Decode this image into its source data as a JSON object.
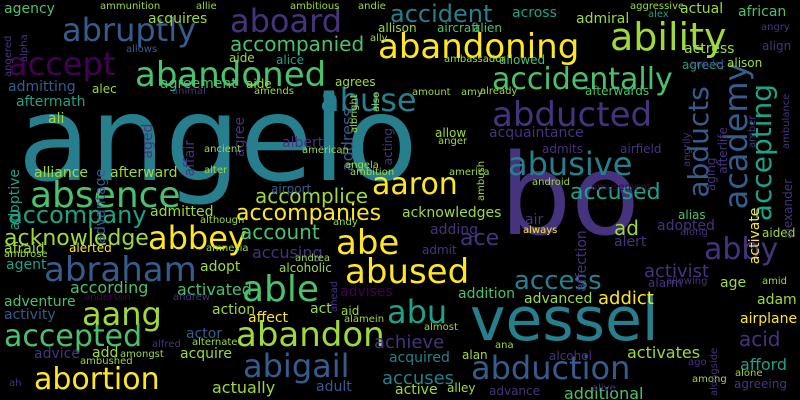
{
  "palette": {
    "background": "#000000",
    "c1": "#440154",
    "c2": "#46337e",
    "c3": "#365c8d",
    "c4": "#277f8e",
    "c5": "#1fa187",
    "c6": "#4ac16d",
    "c7": "#9fda3a",
    "c8": "#fde725"
  },
  "words": [
    {
      "text": "angelo",
      "color": "#277f8e"
    },
    {
      "text": "bo",
      "color": "#46337e"
    },
    {
      "text": "vessel",
      "color": "#277f8e"
    },
    {
      "text": "abandoning",
      "color": "#fde725"
    },
    {
      "text": "ability",
      "color": "#9fda3a"
    },
    {
      "text": "aboard",
      "color": "#46337e"
    },
    {
      "text": "abruptly",
      "color": "#365c8d"
    },
    {
      "text": "accident",
      "color": "#277f8e"
    },
    {
      "text": "accept",
      "color": "#440154"
    },
    {
      "text": "abandoned",
      "color": "#4ac16d"
    },
    {
      "text": "accompanied",
      "color": "#4ac16d"
    },
    {
      "text": "abuse",
      "color": "#277f8e"
    },
    {
      "text": "accidentally",
      "color": "#4ac16d"
    },
    {
      "text": "abducted",
      "color": "#46337e"
    },
    {
      "text": "abducts",
      "color": "#365c8d"
    },
    {
      "text": "academy",
      "color": "#365c8d"
    },
    {
      "text": "accepting",
      "color": "#1fa187"
    },
    {
      "text": "abusive",
      "color": "#277f8e"
    },
    {
      "text": "absence",
      "color": "#4ac16d"
    },
    {
      "text": "aaron",
      "color": "#fde725"
    },
    {
      "text": "accompany",
      "color": "#1fa187"
    },
    {
      "text": "accomplice",
      "color": "#9fda3a"
    },
    {
      "text": "acknowledge",
      "color": "#9fda3a"
    },
    {
      "text": "abbey",
      "color": "#fde725"
    },
    {
      "text": "accompanies",
      "color": "#fde725"
    },
    {
      "text": "account",
      "color": "#4ac16d"
    },
    {
      "text": "abe",
      "color": "#fde725"
    },
    {
      "text": "abraham",
      "color": "#365c8d"
    },
    {
      "text": "abused",
      "color": "#fde725"
    },
    {
      "text": "abby",
      "color": "#46337e"
    },
    {
      "text": "able",
      "color": "#4ac16d"
    },
    {
      "text": "access",
      "color": "#277f8e"
    },
    {
      "text": "aang",
      "color": "#9fda3a"
    },
    {
      "text": "abu",
      "color": "#1fa187"
    },
    {
      "text": "accepted",
      "color": "#4ac16d"
    },
    {
      "text": "abandon",
      "color": "#9fda3a"
    },
    {
      "text": "abigail",
      "color": "#365c8d"
    },
    {
      "text": "abduction",
      "color": "#365c8d"
    },
    {
      "text": "abortion",
      "color": "#fde725"
    },
    {
      "text": "ace",
      "color": "#46337e"
    },
    {
      "text": "accused",
      "color": "#1fa187"
    },
    {
      "text": "accusing",
      "color": "#46337e"
    },
    {
      "text": "according",
      "color": "#4ac16d"
    },
    {
      "text": "activated",
      "color": "#4ac16d"
    },
    {
      "text": "achieve",
      "color": "#46337e"
    },
    {
      "text": "accuses",
      "color": "#277f8e"
    },
    {
      "text": "acquired",
      "color": "#277f8e"
    },
    {
      "text": "actually",
      "color": "#9fda3a"
    },
    {
      "text": "active",
      "color": "#9fda3a"
    },
    {
      "text": "advance",
      "color": "#46337e"
    },
    {
      "text": "additional",
      "color": "#4ac16d"
    },
    {
      "text": "activates",
      "color": "#9fda3a"
    },
    {
      "text": "afford",
      "color": "#1fa187"
    },
    {
      "text": "acid",
      "color": "#46337e"
    },
    {
      "text": "adam",
      "color": "#9fda3a"
    },
    {
      "text": "airplane",
      "color": "#fde725"
    },
    {
      "text": "aided",
      "color": "#9fda3a"
    },
    {
      "text": "alias",
      "color": "#4ac16d"
    },
    {
      "text": "afterward",
      "color": "#9fda3a"
    },
    {
      "text": "acknowledges",
      "color": "#9fda3a"
    },
    {
      "text": "adding",
      "color": "#46337e"
    },
    {
      "text": "admitted",
      "color": "#9fda3a"
    },
    {
      "text": "adopt",
      "color": "#9fda3a"
    },
    {
      "text": "advises",
      "color": "#440154"
    },
    {
      "text": "addition",
      "color": "#4ac16d"
    },
    {
      "text": "advanced",
      "color": "#9fda3a"
    },
    {
      "text": "addict",
      "color": "#fde725"
    },
    {
      "text": "activist",
      "color": "#46337e"
    },
    {
      "text": "adopted",
      "color": "#46337e"
    },
    {
      "text": "alert",
      "color": "#46337e"
    },
    {
      "text": "adventure",
      "color": "#4ac16d"
    },
    {
      "text": "activity",
      "color": "#365c8d"
    },
    {
      "text": "action",
      "color": "#9fda3a"
    },
    {
      "text": "actor",
      "color": "#365c8d"
    },
    {
      "text": "affect",
      "color": "#fde725"
    },
    {
      "text": "act",
      "color": "#9fda3a"
    },
    {
      "text": "aid",
      "color": "#9fda3a"
    },
    {
      "text": "acquire",
      "color": "#9fda3a"
    },
    {
      "text": "adult",
      "color": "#365c8d"
    },
    {
      "text": "advice",
      "color": "#46337e"
    },
    {
      "text": "add",
      "color": "#9fda3a"
    },
    {
      "text": "afraid",
      "color": "#9fda3a"
    },
    {
      "text": "agent",
      "color": "#1fa187"
    },
    {
      "text": "alliance",
      "color": "#9fda3a"
    },
    {
      "text": "ali",
      "color": "#9fda3a"
    },
    {
      "text": "adoptive",
      "color": "#1fa187"
    },
    {
      "text": "advantage",
      "color": "#365c8d"
    },
    {
      "text": "admitting",
      "color": "#365c8d"
    },
    {
      "text": "aftermath",
      "color": "#1fa187"
    },
    {
      "text": "agency",
      "color": "#4ac16d"
    },
    {
      "text": "acquires",
      "color": "#9fda3a"
    },
    {
      "text": "agreement",
      "color": "#4ac16d"
    },
    {
      "text": "aide",
      "color": "#9fda3a"
    },
    {
      "text": "alice",
      "color": "#1fa187"
    },
    {
      "text": "agrees",
      "color": "#9fda3a"
    },
    {
      "text": "across",
      "color": "#1fa187"
    },
    {
      "text": "admiral",
      "color": "#9fda3a"
    },
    {
      "text": "actual",
      "color": "#9fda3a"
    },
    {
      "text": "african",
      "color": "#4ac16d"
    },
    {
      "text": "actress",
      "color": "#9fda3a"
    },
    {
      "text": "agreed",
      "color": "#1fa187"
    },
    {
      "text": "alison",
      "color": "#9fda3a"
    },
    {
      "text": "aggressive",
      "color": "#9fda3a"
    },
    {
      "text": "alex",
      "color": "#1fa187"
    },
    {
      "text": "alien",
      "color": "#4ac16d"
    },
    {
      "text": "aircraft",
      "color": "#4ac16d"
    },
    {
      "text": "allison",
      "color": "#9fda3a"
    },
    {
      "text": "allowed",
      "color": "#4ac16d"
    },
    {
      "text": "afterwards",
      "color": "#4ac16d"
    },
    {
      "text": "acquaintance",
      "color": "#46337e"
    },
    {
      "text": "affair",
      "color": "#46337e"
    },
    {
      "text": "address",
      "color": "#365c8d"
    },
    {
      "text": "albert",
      "color": "#46337e"
    },
    {
      "text": "acting",
      "color": "#46337e"
    },
    {
      "text": "allow",
      "color": "#9fda3a"
    },
    {
      "text": "admits",
      "color": "#46337e"
    },
    {
      "text": "airfield",
      "color": "#46337e"
    },
    {
      "text": "affection",
      "color": "#46337e"
    },
    {
      "text": "air",
      "color": "#46337e"
    },
    {
      "text": "ad",
      "color": "#9fda3a"
    },
    {
      "text": "admit",
      "color": "#46337e"
    },
    {
      "text": "airport",
      "color": "#365c8d"
    },
    {
      "text": "alcoholic",
      "color": "#9fda3a"
    },
    {
      "text": "alarm",
      "color": "#46337e"
    },
    {
      "text": "age",
      "color": "#9fda3a"
    },
    {
      "text": "alan",
      "color": "#9fda3a"
    },
    {
      "text": "alley",
      "color": "#9fda3a"
    },
    {
      "text": "alcohol",
      "color": "#46337e"
    },
    {
      "text": "alive",
      "color": "#46337e"
    },
    {
      "text": "agreeing",
      "color": "#46337e"
    },
    {
      "text": "activate",
      "color": "#fde725"
    },
    {
      "text": "alexander",
      "color": "#46337e"
    },
    {
      "text": "aging",
      "color": "#46337e"
    },
    {
      "text": "aged",
      "color": "#46337e"
    },
    {
      "text": "agree",
      "color": "#46337e"
    },
    {
      "text": "afterlife",
      "color": "#46337e"
    },
    {
      "text": "align",
      "color": "#46337e"
    },
    {
      "text": "angry",
      "color": "#46337e"
    },
    {
      "text": "alec",
      "color": "#9fda3a"
    },
    {
      "text": "aide",
      "color": "#9fda3a"
    },
    {
      "text": "allows",
      "color": "#365c8d"
    },
    {
      "text": "angered",
      "color": "#46337e"
    },
    {
      "text": "ambassador",
      "color": "#9fda3a"
    },
    {
      "text": "ammunition",
      "color": "#9fda3a"
    },
    {
      "text": "allie",
      "color": "#9fda3a"
    },
    {
      "text": "andie",
      "color": "#9fda3a"
    },
    {
      "text": "ally",
      "color": "#9fda3a"
    },
    {
      "text": "alpha",
      "color": "#46337e"
    },
    {
      "text": "amber",
      "color": "#46337e"
    },
    {
      "text": "always",
      "color": "#fde725"
    },
    {
      "text": "android",
      "color": "#9fda3a"
    },
    {
      "text": "amusement",
      "color": "#440154"
    },
    {
      "text": "along",
      "color": "#46337e"
    },
    {
      "text": "although",
      "color": "#9fda3a"
    },
    {
      "text": "amnesia",
      "color": "#9fda3a"
    },
    {
      "text": "andy",
      "color": "#9fda3a"
    },
    {
      "text": "andrea",
      "color": "#9fda3a"
    },
    {
      "text": "angela",
      "color": "#9fda3a"
    },
    {
      "text": "ancient",
      "color": "#9fda3a"
    },
    {
      "text": "alter",
      "color": "#9fda3a"
    },
    {
      "text": "albright",
      "color": "#9fda3a"
    },
    {
      "text": "animal",
      "color": "#46337e"
    },
    {
      "text": "amends",
      "color": "#9fda3a"
    },
    {
      "text": "already",
      "color": "#9fda3a"
    },
    {
      "text": "also",
      "color": "#9fda3a"
    },
    {
      "text": "amount",
      "color": "#9fda3a"
    },
    {
      "text": "amy",
      "color": "#9fda3a"
    },
    {
      "text": "american",
      "color": "#9fda3a"
    },
    {
      "text": "ambition",
      "color": "#9fda3a"
    },
    {
      "text": "america",
      "color": "#9fda3a"
    },
    {
      "text": "ambush",
      "color": "#9fda3a"
    },
    {
      "text": "anger",
      "color": "#9fda3a"
    },
    {
      "text": "angrily",
      "color": "#46337e"
    },
    {
      "text": "amulet",
      "color": "#46337e"
    },
    {
      "text": "ambulance",
      "color": "#46337e"
    },
    {
      "text": "ambrose",
      "color": "#9fda3a"
    },
    {
      "text": "alerted",
      "color": "#fde725"
    },
    {
      "text": "anderson",
      "color": "#440154"
    },
    {
      "text": "andrew",
      "color": "#46337e"
    },
    {
      "text": "ahead",
      "color": "#46337e"
    },
    {
      "text": "alamein",
      "color": "#9fda3a"
    },
    {
      "text": "almost",
      "color": "#9fda3a"
    },
    {
      "text": "ana",
      "color": "#9fda3a"
    },
    {
      "text": "alfred",
      "color": "#46337e"
    },
    {
      "text": "alternate",
      "color": "#9fda3a"
    },
    {
      "text": "amongst",
      "color": "#9fda3a"
    },
    {
      "text": "ambushed",
      "color": "#9fda3a"
    },
    {
      "text": "ah",
      "color": "#46337e"
    },
    {
      "text": "among",
      "color": "#9fda3a"
    },
    {
      "text": "ago",
      "color": "#46337e"
    },
    {
      "text": "alone",
      "color": "#9fda3a"
    },
    {
      "text": "alongside",
      "color": "#46337e"
    },
    {
      "text": "allowing",
      "color": "#46337e"
    },
    {
      "text": "amid",
      "color": "#9fda3a"
    },
    {
      "text": "ambitious",
      "color": "#9fda3a"
    }
  ]
}
